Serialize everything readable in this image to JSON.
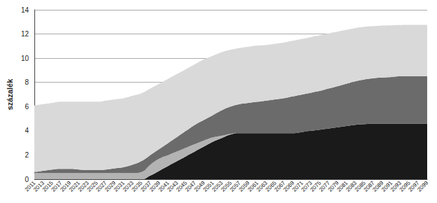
{
  "chart_data": {
    "type": "area",
    "stacked": true,
    "grid": true,
    "y_label": "százalék",
    "categories": [
      "2011",
      "2013",
      "2015",
      "2017",
      "2019",
      "2021",
      "2023",
      "2025",
      "2027",
      "2029",
      "2031",
      "2033",
      "2035",
      "2037",
      "2039",
      "2041",
      "2043",
      "2045",
      "2047",
      "2049",
      "2051",
      "2053",
      "2055",
      "2057",
      "2059",
      "2061",
      "2063",
      "2065",
      "2067",
      "2069",
      "2071",
      "2073",
      "2075",
      "2077",
      "2079",
      "2081",
      "2083",
      "2085",
      "2087",
      "2089",
      "2091",
      "2093",
      "2095",
      "2097",
      "2099"
    ],
    "ylim": [
      0,
      14
    ],
    "yticks": [
      0,
      2,
      4,
      6,
      8,
      10,
      12,
      14
    ],
    "series": [
      {
        "color": "#1a1a1a",
        "values": [
          0,
          0,
          0,
          0,
          0,
          0,
          0,
          0,
          0,
          0,
          0,
          0,
          0,
          0.3,
          0.7,
          1.1,
          1.5,
          1.9,
          2.3,
          2.7,
          3.1,
          3.4,
          3.7,
          3.8,
          3.8,
          3.8,
          3.8,
          3.8,
          3.8,
          3.8,
          3.9,
          4.0,
          4.1,
          4.2,
          4.3,
          4.4,
          4.5,
          4.55,
          4.6,
          4.6,
          4.6,
          4.6,
          4.6,
          4.6,
          4.6
        ]
      },
      {
        "color": "#b3b3b3",
        "values": [
          0.5,
          0.5,
          0.5,
          0.5,
          0.5,
          0.5,
          0.5,
          0.5,
          0.5,
          0.5,
          0.5,
          0.5,
          0.6,
          0.9,
          1.0,
          0.9,
          0.8,
          0.7,
          0.6,
          0.5,
          0.35,
          0.2,
          0.05,
          0,
          0,
          0,
          0,
          0,
          0,
          0,
          0,
          0,
          0,
          0,
          0,
          0,
          0,
          0,
          0,
          0,
          0,
          0,
          0,
          0,
          0
        ]
      },
      {
        "color": "#6b6b6b",
        "values": [
          0.1,
          0.2,
          0.3,
          0.35,
          0.35,
          0.3,
          0.25,
          0.25,
          0.3,
          0.4,
          0.5,
          0.7,
          0.9,
          0.8,
          0.8,
          1.0,
          1.2,
          1.4,
          1.6,
          1.7,
          1.85,
          2.1,
          2.25,
          2.4,
          2.5,
          2.6,
          2.7,
          2.8,
          2.9,
          3.05,
          3.1,
          3.15,
          3.2,
          3.3,
          3.4,
          3.5,
          3.6,
          3.7,
          3.75,
          3.8,
          3.85,
          3.9,
          3.9,
          3.9,
          3.9
        ]
      },
      {
        "color": "#d9d9d9",
        "values": [
          5.5,
          5.5,
          5.5,
          5.55,
          5.55,
          5.6,
          5.65,
          5.65,
          5.7,
          5.7,
          5.7,
          5.7,
          5.6,
          5.5,
          5.4,
          5.3,
          5.2,
          5.1,
          5.0,
          5.0,
          4.9,
          4.8,
          4.7,
          4.65,
          4.65,
          4.65,
          4.6,
          4.6,
          4.6,
          4.6,
          4.6,
          4.6,
          4.6,
          4.55,
          4.5,
          4.45,
          4.4,
          4.35,
          4.3,
          4.3,
          4.27,
          4.24,
          4.25,
          4.26,
          4.26
        ]
      }
    ]
  }
}
